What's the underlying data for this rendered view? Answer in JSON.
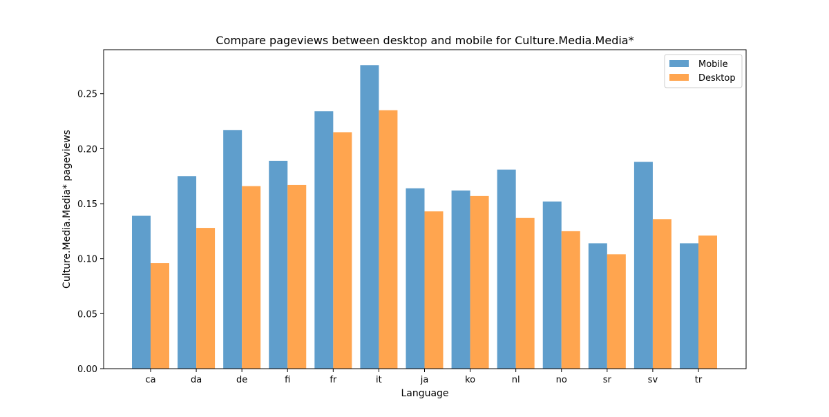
{
  "chart_data": {
    "type": "bar",
    "title": "Compare pageviews between desktop and mobile for Culture.Media.Media*",
    "xlabel": "Language",
    "ylabel": "Culture.Media.Media* pageviews",
    "categories": [
      "ca",
      "da",
      "de",
      "fi",
      "fr",
      "it",
      "ja",
      "ko",
      "nl",
      "no",
      "sr",
      "sv",
      "tr"
    ],
    "series": [
      {
        "name": "Mobile",
        "color": "#5f9ecc",
        "values": [
          0.139,
          0.175,
          0.217,
          0.189,
          0.234,
          0.276,
          0.164,
          0.162,
          0.181,
          0.152,
          0.114,
          0.188,
          0.114
        ]
      },
      {
        "name": "Desktop",
        "color": "#ffa54f",
        "values": [
          0.096,
          0.128,
          0.166,
          0.167,
          0.215,
          0.235,
          0.143,
          0.157,
          0.137,
          0.125,
          0.104,
          0.136,
          0.121
        ]
      }
    ],
    "ylim": [
      0,
      0.29
    ],
    "yticks": [
      0.0,
      0.05,
      0.1,
      0.15,
      0.2,
      0.25
    ],
    "ytick_labels": [
      "0.00",
      "0.05",
      "0.10",
      "0.15",
      "0.20",
      "0.25"
    ],
    "legend_position": "top-right",
    "grid": false
  }
}
